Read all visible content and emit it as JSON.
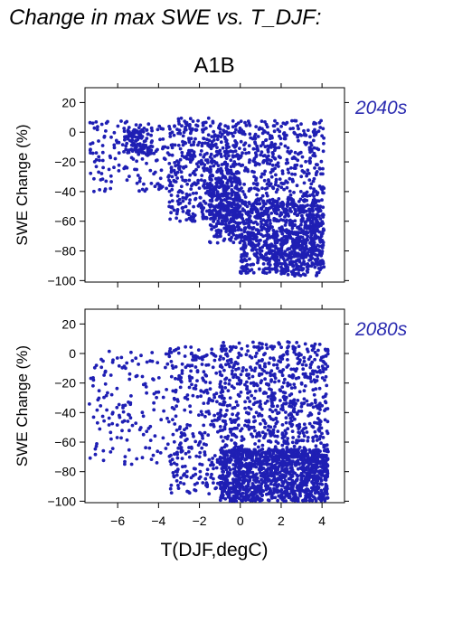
{
  "figure": {
    "title": "Change in max SWE vs. T_DJF:",
    "scenario": "A1B",
    "xlabel": "T(DJF,degC)",
    "point_color": "#1f1fb4",
    "period_color": "#2b2bb0"
  },
  "chart_data": [
    {
      "type": "scatter",
      "panel": "2040s",
      "ylabel": "SWE Change (%)",
      "xlim": [
        -7.6,
        5.1
      ],
      "ylim": [
        -101,
        30
      ],
      "xticks": [
        -6,
        -4,
        -2,
        0,
        2,
        4
      ],
      "yticks": [
        20,
        0,
        -20,
        -40,
        -60,
        -80,
        -100
      ],
      "approx_point_count": 2400,
      "clusters": [
        {
          "x_range": [
            -7.5,
            -3.5
          ],
          "y_range": [
            -40,
            10
          ],
          "note": "sparse points, dense near (-5,-5)"
        },
        {
          "x_range": [
            -3.5,
            -1.5
          ],
          "y_range": [
            -60,
            10
          ],
          "note": "moderate density"
        },
        {
          "x_range": [
            -1.5,
            4.1
          ],
          "y_range": [
            -98,
            10
          ],
          "note": "dense main cloud, densest 0 to 2 between -40 and -90"
        }
      ]
    },
    {
      "type": "scatter",
      "panel": "2080s",
      "ylabel": "SWE Change (%)",
      "xlim": [
        -7.6,
        5.1
      ],
      "ylim": [
        -101,
        30
      ],
      "xticks": [
        -6,
        -4,
        -2,
        0,
        2,
        4
      ],
      "yticks": [
        20,
        0,
        -20,
        -40,
        -60,
        -80,
        -100
      ],
      "approx_point_count": 2400,
      "clusters": [
        {
          "x_range": [
            -7.5,
            -3.5
          ],
          "y_range": [
            -75,
            2
          ],
          "note": "sparse points"
        },
        {
          "x_range": [
            -3.5,
            -1.0
          ],
          "y_range": [
            -95,
            5
          ],
          "note": "moderate density"
        },
        {
          "x_range": [
            -1.0,
            4.3
          ],
          "y_range": [
            -100,
            8
          ],
          "note": "dense main cloud, densest 0 to 3 between -70 and -100"
        }
      ]
    }
  ]
}
